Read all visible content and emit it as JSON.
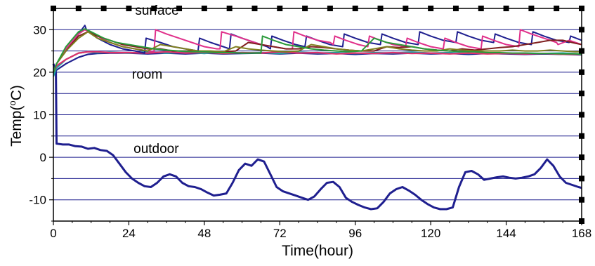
{
  "chart_data": {
    "type": "line",
    "xlabel": "Time(hour)",
    "ylabel_main": "Temp(",
    "ylabel_sup": "o",
    "ylabel_end": "C)",
    "xlim": [
      0,
      168
    ],
    "ylim": [
      -15,
      35
    ],
    "xticks": [
      0,
      24,
      48,
      72,
      96,
      120,
      144,
      168
    ],
    "yticks": [
      -10,
      0,
      10,
      20,
      30
    ],
    "ytick_labels": [
      "-10",
      "0",
      "10",
      "20",
      "30"
    ],
    "xtick_labels": [
      "0",
      "24",
      "48",
      "72",
      "96",
      "120",
      "144",
      "168"
    ],
    "gridlines_y": [
      -10,
      -5,
      0,
      5,
      10,
      15,
      20,
      25,
      30
    ],
    "grid_color": "#1a1a8c",
    "annotations": [
      {
        "text": "surface",
        "x": 26,
        "y": 33.5
      },
      {
        "text": "room",
        "x": 25,
        "y": 18.5
      },
      {
        "text": "outdoor",
        "x": 25.5,
        "y": 1
      }
    ],
    "series": [
      {
        "color": "#1f1f8f",
        "x": [
          0,
          0.8,
          1,
          3,
          5,
          7,
          9,
          11,
          13,
          15,
          17,
          19,
          21,
          23,
          25,
          27,
          29,
          31,
          33,
          35,
          37,
          39,
          41,
          43,
          45,
          47,
          49,
          51,
          53,
          55,
          57,
          59,
          61,
          63,
          65,
          67,
          69,
          71,
          73,
          75,
          77,
          79,
          81,
          83,
          85,
          87,
          89,
          91,
          93,
          95,
          97,
          99,
          101,
          103,
          105,
          107,
          109,
          111,
          113,
          115,
          117,
          119,
          121,
          123,
          125,
          127,
          129,
          131,
          133,
          135,
          137,
          139,
          141,
          143,
          145,
          147,
          149,
          151,
          153,
          155,
          157,
          159,
          161,
          163,
          165,
          167,
          168
        ],
        "y": [
          22,
          20,
          3.2,
          3.0,
          3.0,
          2.6,
          2.5,
          2.0,
          2.2,
          1.7,
          1.5,
          0.5,
          -1.5,
          -3.5,
          -5.0,
          -6.0,
          -6.8,
          -7.0,
          -6.0,
          -4.5,
          -4.0,
          -4.5,
          -6.0,
          -6.8,
          -7.0,
          -7.5,
          -8.3,
          -9.0,
          -8.8,
          -8.5,
          -6.0,
          -3.0,
          -1.5,
          -2.0,
          -0.5,
          -1.0,
          -4.0,
          -7.0,
          -8.0,
          -8.5,
          -9.0,
          -9.5,
          -10.0,
          -9.2,
          -7.5,
          -6.0,
          -5.8,
          -7.0,
          -9.5,
          -10.5,
          -11.2,
          -11.8,
          -12.2,
          -12.0,
          -10.5,
          -8.5,
          -7.5,
          -7.0,
          -7.8,
          -8.8,
          -10.0,
          -11.0,
          -11.8,
          -12.2,
          -12.2,
          -11.8,
          -7.0,
          -3.5,
          -3.2,
          -4.0,
          -5.3,
          -5.0,
          -4.7,
          -4.5,
          -4.8,
          -5.0,
          -4.8,
          -4.5,
          -4.0,
          -2.5,
          -0.5,
          -2.0,
          -4.5,
          -6.0,
          -6.5,
          -7.0,
          -7.2
        ]
      },
      {
        "color": "#1f1f8f",
        "x": [
          0,
          1,
          4,
          8,
          11,
          14,
          18,
          24,
          30,
          36,
          42,
          48,
          54,
          60,
          66,
          72,
          78,
          84,
          90,
          96,
          102,
          108,
          114,
          120,
          126,
          132,
          138,
          144,
          150,
          156,
          162,
          168
        ],
        "y": [
          19.5,
          20.5,
          22,
          23.5,
          24.2,
          24.4,
          24.5,
          24.5,
          24.3,
          24.5,
          24.3,
          24.5,
          24.3,
          24.4,
          24.5,
          24.3,
          24.5,
          24.3,
          24.4,
          24.2,
          24.4,
          24.3,
          24.5,
          24.3,
          24.4,
          24.2,
          24.4,
          24.3,
          24.2,
          24.3,
          24.2,
          24.1
        ]
      },
      {
        "color": "#1a9f9f",
        "x": [
          0,
          1,
          4,
          8,
          11,
          14,
          18,
          24,
          30,
          36,
          42,
          48,
          54,
          60,
          66,
          72,
          78,
          84,
          90,
          96,
          102,
          108,
          114,
          120,
          126,
          132,
          138,
          144,
          150,
          156,
          162,
          168
        ],
        "y": [
          19,
          21,
          23,
          24.5,
          24.8,
          24.6,
          24.7,
          24.5,
          24.8,
          24.5,
          24.7,
          24.4,
          24.8,
          24.5,
          24.6,
          24.4,
          24.7,
          24.5,
          24.6,
          24.4,
          24.6,
          24.5,
          24.7,
          24.5,
          24.6,
          24.4,
          24.6,
          24.4,
          24.5,
          24.4,
          24.5,
          24.3
        ]
      },
      {
        "color": "#e0306a",
        "x": [
          0,
          1,
          4,
          8,
          11,
          14,
          18,
          24,
          30,
          36,
          42,
          48,
          54,
          60,
          66,
          72,
          78,
          84,
          90,
          96,
          102,
          108,
          114,
          120,
          126,
          132,
          138,
          144,
          150,
          156,
          162,
          168
        ],
        "y": [
          20,
          21.5,
          23,
          24.5,
          24.8,
          24.8,
          24.6,
          24.6,
          24.5,
          24.8,
          24.5,
          24.7,
          24.4,
          24.6,
          24.5,
          24.8,
          24.5,
          24.6,
          24.3,
          24.5,
          24.4,
          24.6,
          24.4,
          24.5,
          24.3,
          24.5,
          24.3,
          24.4,
          24.3,
          24.4,
          24.2,
          24.2
        ]
      },
      {
        "color": "#1f1f8f",
        "x": [
          0,
          1,
          4,
          8,
          10,
          10.5,
          14,
          18,
          22,
          26,
          29,
          29.5,
          34,
          38,
          42,
          46,
          46.5,
          50,
          54,
          56,
          56.5,
          60,
          64,
          68,
          69,
          69.5,
          73,
          77,
          80,
          80.5,
          84,
          88,
          92,
          92.5,
          96,
          100,
          104,
          104.5,
          108,
          112,
          116,
          116.5,
          120,
          124,
          128,
          128.5,
          132,
          136,
          140,
          140.5,
          144,
          148,
          152,
          152.5,
          156,
          160,
          164,
          164.5,
          168
        ],
        "y": [
          20,
          22,
          25,
          29,
          31,
          30,
          28,
          26.5,
          25.5,
          25,
          24.5,
          28,
          27,
          26,
          25.5,
          25,
          28,
          27,
          26,
          25.5,
          29,
          28,
          27,
          26,
          25.5,
          28.5,
          27.5,
          26.5,
          26,
          28.5,
          27.5,
          26.5,
          26,
          29,
          28,
          27,
          26.5,
          29,
          28,
          27,
          26.5,
          29.5,
          28.5,
          27.5,
          27,
          29.5,
          28.5,
          27.5,
          27,
          29,
          28,
          27,
          26.5,
          29.5,
          28.5,
          27.5,
          27,
          28.5,
          27.5
        ]
      },
      {
        "color": "#e0308a",
        "x": [
          0,
          1,
          4,
          8,
          10,
          14,
          18,
          22,
          26,
          30,
          32,
          32.5,
          36,
          40,
          44,
          48,
          52,
          53,
          53.5,
          58,
          62,
          66,
          70,
          74,
          76,
          76.5,
          80,
          84,
          88,
          89,
          89.5,
          93,
          97,
          100,
          100.5,
          104,
          108,
          112,
          112.5,
          116,
          120,
          124,
          124.5,
          128,
          132,
          136,
          136.5,
          140,
          144,
          148,
          148.5,
          152,
          156,
          160,
          160.5,
          164,
          168
        ],
        "y": [
          20,
          22,
          25.5,
          29,
          30,
          28.5,
          27,
          26,
          25.5,
          25,
          24.8,
          30,
          29,
          28,
          27,
          26,
          25.5,
          25.5,
          29.5,
          28.5,
          27.5,
          26.5,
          26,
          25.5,
          25.5,
          29.5,
          28.5,
          27.5,
          27,
          26.5,
          28.5,
          27.5,
          26.5,
          26,
          28.5,
          27.5,
          26.5,
          26,
          28,
          27,
          26,
          25.5,
          28,
          27,
          26,
          25.5,
          28.5,
          27.5,
          26.5,
          26,
          30,
          29,
          28,
          27,
          26.5,
          27.5,
          26.5
        ]
      },
      {
        "color": "#7f1f1f",
        "x": [
          0,
          1,
          4,
          8,
          11,
          14,
          18,
          22,
          26,
          30,
          34,
          38,
          42,
          46,
          50,
          54,
          58,
          62,
          66,
          70,
          74,
          78,
          82,
          86,
          90,
          94,
          98,
          102,
          106,
          110,
          114,
          118,
          122,
          126,
          130,
          134,
          138,
          142,
          146,
          150,
          154,
          158,
          162,
          166,
          168
        ],
        "y": [
          20,
          22,
          25,
          28.5,
          29.5,
          28.5,
          27.5,
          26.5,
          26,
          25.5,
          25.5,
          25,
          25,
          25,
          24.8,
          24.8,
          25,
          27,
          26.5,
          26,
          25.5,
          25.5,
          26,
          25.8,
          25.5,
          25.2,
          25,
          25,
          26,
          25.8,
          26,
          25.5,
          25.2,
          25,
          25.5,
          25.2,
          25.5,
          25.8,
          26,
          26.5,
          27,
          27.5,
          27.5,
          26.8,
          26.5
        ]
      },
      {
        "color": "#7f7f1f",
        "x": [
          0,
          1,
          4,
          8,
          11,
          14,
          18,
          22,
          26,
          30,
          34,
          38,
          42,
          46,
          50,
          54,
          58,
          62,
          66,
          70,
          74,
          78,
          82,
          86,
          90,
          94,
          98,
          102,
          106,
          110,
          114,
          118,
          122,
          126,
          130,
          134,
          138,
          142,
          146,
          150,
          154,
          158,
          162,
          166,
          168
        ],
        "y": [
          20,
          22,
          25,
          28,
          29.5,
          28,
          27,
          26,
          25.5,
          25,
          26.5,
          26,
          25.5,
          25,
          25,
          24.8,
          26,
          25.5,
          25.2,
          25,
          24.8,
          25,
          26.5,
          26,
          25.5,
          25.2,
          25,
          25.5,
          26,
          25.5,
          25.2,
          25,
          25,
          25.5,
          25.2,
          25,
          25,
          25,
          25.2,
          25,
          25,
          25.2,
          25,
          24.8,
          24.8
        ]
      },
      {
        "color": "#2a9a3a",
        "x": [
          0,
          1,
          4,
          8,
          10,
          12,
          16,
          20,
          24,
          28,
          32,
          36,
          40,
          44,
          48,
          52,
          56,
          60,
          64,
          66,
          66.5,
          70,
          74,
          78,
          82,
          86,
          90,
          94,
          98,
          102,
          106,
          110,
          114,
          118,
          122,
          126,
          130,
          134,
          138,
          142,
          146,
          150,
          154,
          158,
          162,
          166,
          168
        ],
        "y": [
          20,
          22,
          26,
          29.5,
          30.2,
          29.5,
          28,
          27,
          26.5,
          26,
          25.5,
          25.2,
          25,
          24.8,
          24.8,
          24.6,
          24.6,
          24.5,
          24.5,
          24.5,
          28.5,
          27.5,
          26.5,
          26,
          25.5,
          25.2,
          25,
          24.8,
          25,
          28,
          27,
          26.5,
          26,
          25.5,
          25.2,
          25,
          24.8,
          24.8,
          24.6,
          24.6,
          24.5,
          24.5,
          24.4,
          24.4,
          24.3,
          24.3,
          24.2
        ]
      }
    ]
  }
}
